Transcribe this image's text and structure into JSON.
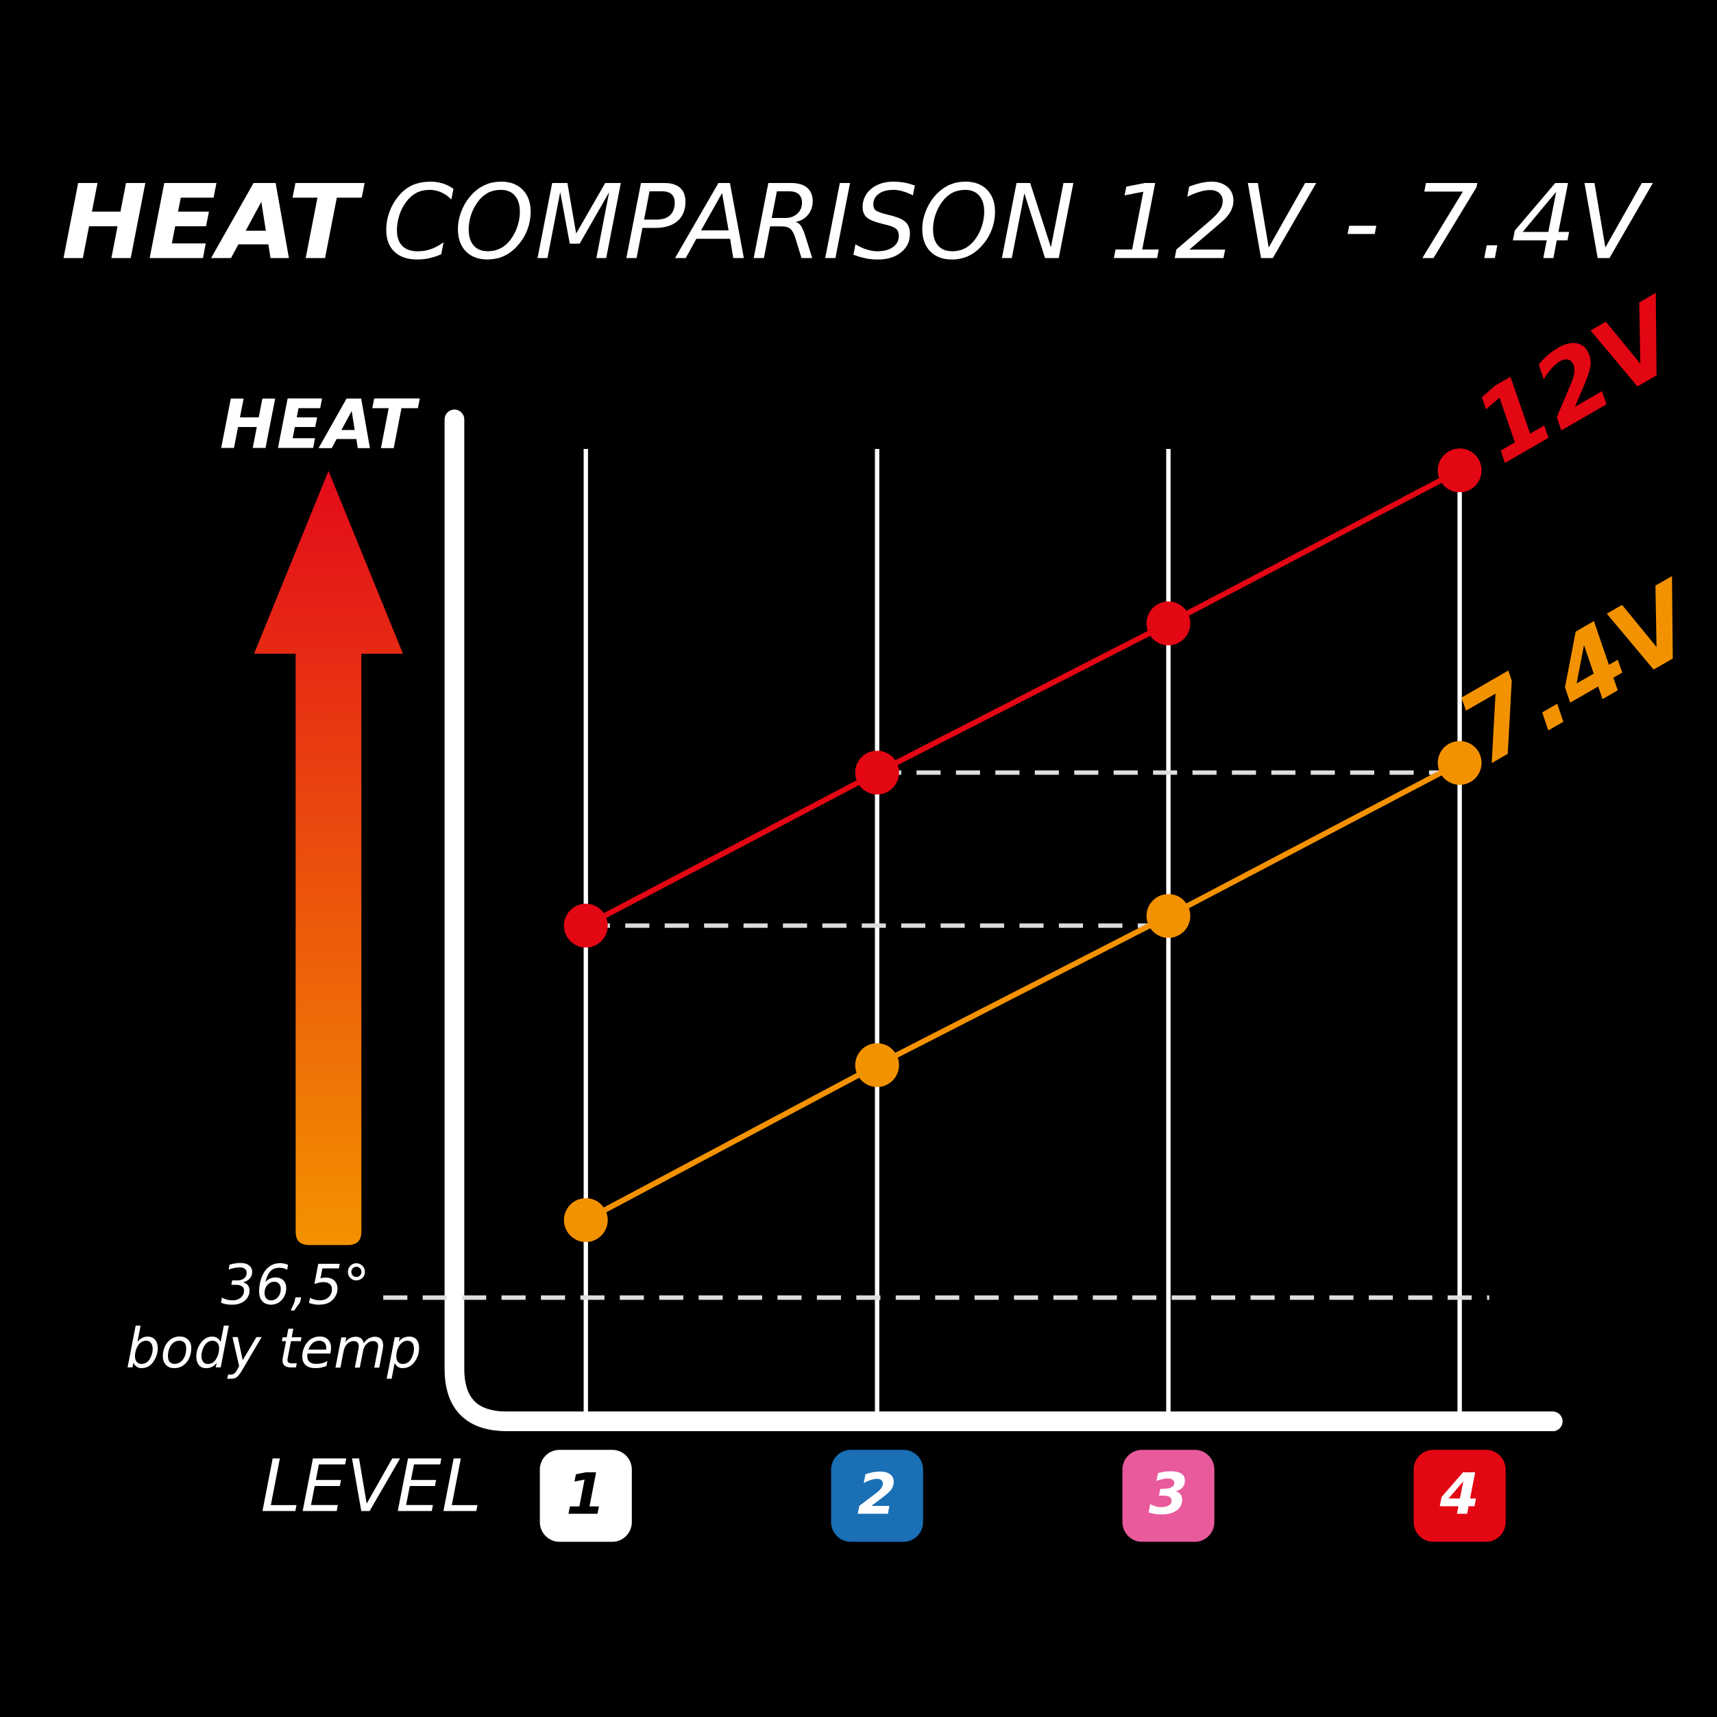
{
  "chart_data": {
    "type": "line",
    "title": [
      "HEAT",
      "COMPARISON 12V - 7.4V"
    ],
    "y_label": "HEAT",
    "x_label": "LEVEL",
    "categories": [
      "1",
      "2",
      "3",
      "4"
    ],
    "category_colors": [
      "#ffffff",
      "#1a6fb5",
      "#e85a9b",
      "#e30613"
    ],
    "category_text_colors": [
      "#000000",
      "#ffffff",
      "#ffffff",
      "#ffffff"
    ],
    "ylim": [
      30,
      82
    ],
    "reference": {
      "value": 36.5,
      "label": "36,5°",
      "caption": "body temp"
    },
    "series": [
      {
        "name": "12V",
        "color": "#e30613",
        "values": [
          55.7,
          63.6,
          71.3,
          79.2
        ]
      },
      {
        "name": "7.4V",
        "color": "#f39200",
        "values": [
          40.5,
          48.5,
          56.2,
          64.1
        ]
      }
    ]
  }
}
